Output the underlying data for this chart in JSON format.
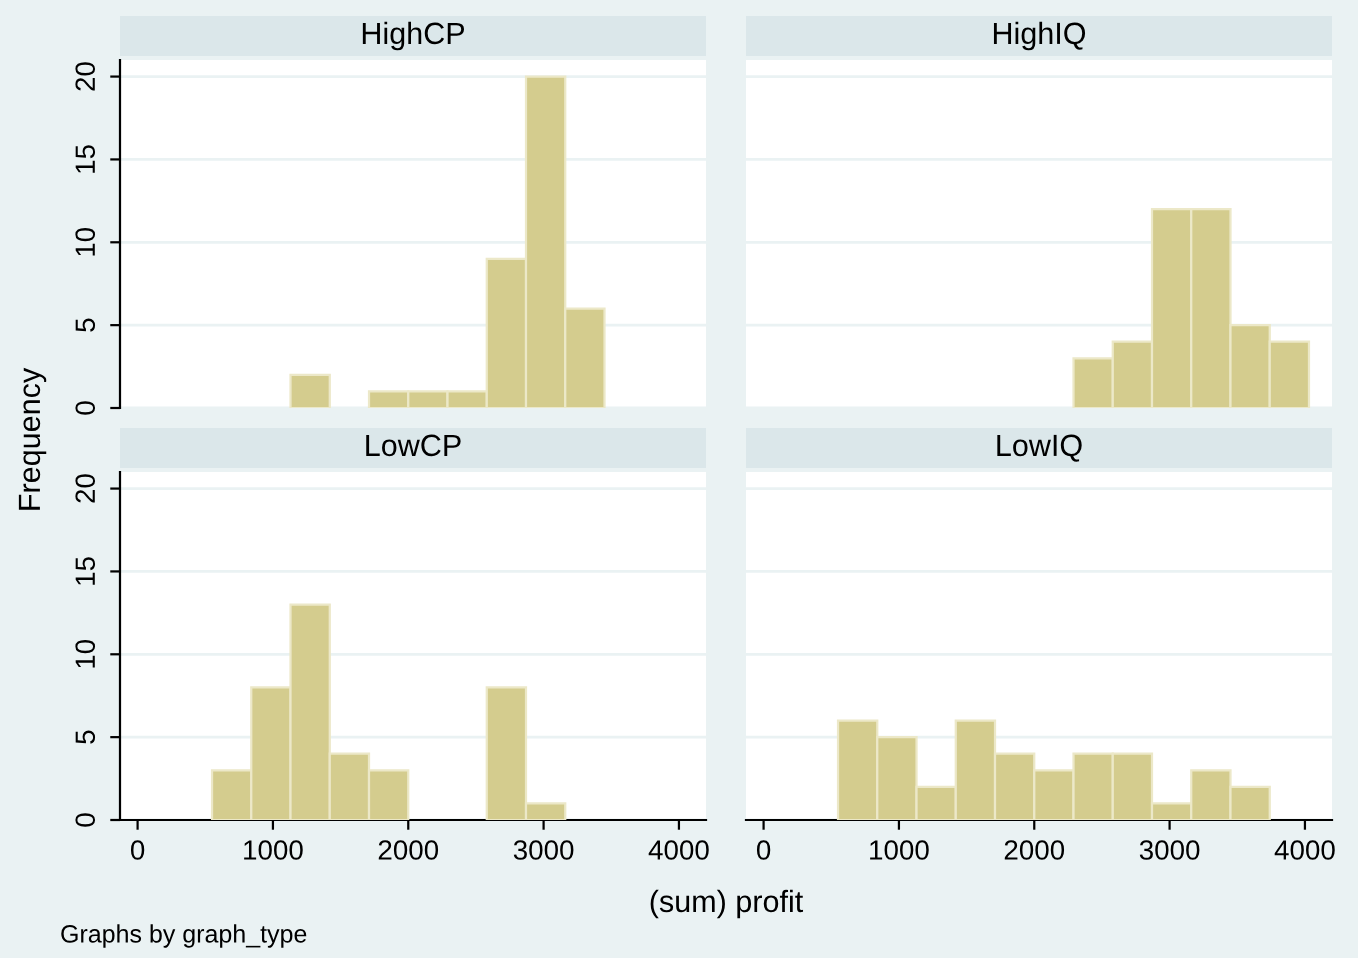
{
  "chart_data": [
    {
      "type": "histogram",
      "title": "HighCP",
      "ylabel": "Frequency",
      "bins": [
        550,
        840,
        1130,
        1420,
        1710,
        2000,
        2290,
        2580,
        2870,
        3160,
        3450,
        3740,
        4030
      ],
      "values": [
        0,
        0,
        2,
        0,
        1,
        1,
        1,
        9,
        20,
        6,
        0,
        0
      ],
      "color": "#d4cc8e",
      "xlim": [
        -130,
        4200
      ],
      "ylim": [
        0,
        21
      ],
      "xticks": [
        0,
        1000,
        2000,
        3000,
        4000
      ],
      "yticks": [
        0,
        5,
        10,
        15,
        20
      ],
      "grid": "y",
      "tick_labels": "y"
    },
    {
      "type": "histogram",
      "title": "HighIQ",
      "bins": [
        550,
        840,
        1130,
        1420,
        1710,
        2000,
        2290,
        2580,
        2870,
        3160,
        3450,
        3740,
        4030
      ],
      "values": [
        0,
        0,
        0,
        0,
        0,
        0,
        3,
        4,
        12,
        12,
        5,
        4
      ],
      "color": "#d4cc8e",
      "xlim": [
        -130,
        4200
      ],
      "ylim": [
        0,
        21
      ],
      "xticks": [
        0,
        1000,
        2000,
        3000,
        4000
      ],
      "yticks": [
        0,
        5,
        10,
        15,
        20
      ],
      "grid": "y",
      "tick_labels": false
    },
    {
      "type": "histogram",
      "title": "LowCP",
      "xlabel": "(sum) profit",
      "bins": [
        550,
        840,
        1130,
        1420,
        1710,
        2000,
        2290,
        2580,
        2870,
        3160,
        3450,
        3740,
        4030
      ],
      "values": [
        3,
        8,
        13,
        4,
        3,
        0,
        0,
        8,
        1,
        0,
        0,
        0
      ],
      "color": "#d4cc8e",
      "xlim": [
        -130,
        4200
      ],
      "ylim": [
        0,
        21
      ],
      "xticks": [
        0,
        1000,
        2000,
        3000,
        4000
      ],
      "yticks": [
        0,
        5,
        10,
        15,
        20
      ],
      "grid": "y"
    },
    {
      "type": "histogram",
      "title": "LowIQ",
      "annotations": [
        "Graphs by graph_type"
      ],
      "bins": [
        550,
        840,
        1130,
        1420,
        1710,
        2000,
        2290,
        2580,
        2870,
        3160,
        3450,
        3740,
        4030
      ],
      "values": [
        6,
        5,
        2,
        6,
        4,
        3,
        4,
        4,
        1,
        3,
        2,
        0
      ],
      "color": "#d4cc8e",
      "xlim": [
        -130,
        4200
      ],
      "ylim": [
        0,
        21
      ],
      "xticks": [
        0,
        1000,
        2000,
        3000,
        4000
      ],
      "yticks": [
        0,
        5,
        10,
        15,
        20
      ],
      "grid": "y",
      "tick_labels": "x"
    }
  ]
}
